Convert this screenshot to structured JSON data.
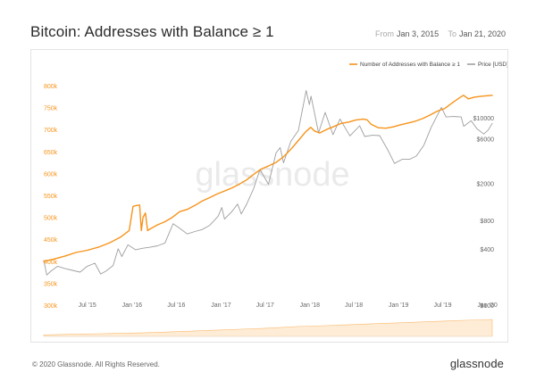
{
  "header": {
    "title": "Bitcoin: Addresses with Balance ≥ 1",
    "from_label": "From",
    "from_value": "Jan 3, 2015",
    "to_label": "To",
    "to_value": "Jan 21, 2020"
  },
  "footer": {
    "copyright": "© 2020 Glassnode. All Rights Reserved.",
    "logo": "glassnode"
  },
  "watermark": {
    "text": "glassnode"
  },
  "colors": {
    "addresses": "#f7931a",
    "price": "#9e9e9e",
    "volume": "#f7931a"
  },
  "chart_data": {
    "type": "line",
    "title": "Bitcoin: Addresses with Balance ≥ 1",
    "x_range": [
      "2015-01-03",
      "2020-01-21"
    ],
    "x_ticks": [
      {
        "label": "Jul '15",
        "date": "2015-07-01"
      },
      {
        "label": "Jan '16",
        "date": "2016-01-01"
      },
      {
        "label": "Jul '16",
        "date": "2016-07-01"
      },
      {
        "label": "Jan '17",
        "date": "2017-01-01"
      },
      {
        "label": "Jul '17",
        "date": "2017-07-01"
      },
      {
        "label": "Jan '18",
        "date": "2018-01-01"
      },
      {
        "label": "Jul '18",
        "date": "2018-07-01"
      },
      {
        "label": "Jan '19",
        "date": "2019-01-01"
      },
      {
        "label": "Jul '19",
        "date": "2019-07-01"
      },
      {
        "label": "Jan '20",
        "date": "2020-01-01"
      }
    ],
    "y_left": {
      "scale": "linear",
      "ylim": [
        300000,
        800000
      ],
      "ticks": [
        300000,
        350000,
        400000,
        450000,
        500000,
        550000,
        600000,
        650000,
        700000,
        750000,
        800000
      ],
      "tick_labels": [
        "300k",
        "350k",
        "400k",
        "450k",
        "500k",
        "550k",
        "600k",
        "650k",
        "700k",
        "750k",
        "800k"
      ]
    },
    "y_right": {
      "scale": "log",
      "ylim": [
        100,
        22000
      ],
      "ticks": [
        100,
        400,
        800,
        2000,
        6000,
        10000
      ],
      "tick_labels": [
        "$100",
        "$400",
        "$800",
        "$2000",
        "$6000",
        "$10000"
      ]
    },
    "legend": {
      "position": "top-right"
    },
    "series": [
      {
        "name": "Number of Addresses with Balance ≥ 1",
        "axis": "left",
        "color": "#f7931a",
        "points": [
          [
            "2015-01-03",
            400000
          ],
          [
            "2015-02-15",
            405000
          ],
          [
            "2015-04-01",
            412000
          ],
          [
            "2015-05-15",
            420000
          ],
          [
            "2015-07-01",
            425000
          ],
          [
            "2015-08-15",
            432000
          ],
          [
            "2015-10-01",
            442000
          ],
          [
            "2015-11-15",
            455000
          ],
          [
            "2015-12-20",
            470000
          ],
          [
            "2016-01-05",
            525000
          ],
          [
            "2016-01-20",
            527000
          ],
          [
            "2016-02-01",
            528000
          ],
          [
            "2016-02-08",
            470000
          ],
          [
            "2016-02-15",
            500000
          ],
          [
            "2016-02-25",
            510000
          ],
          [
            "2016-03-05",
            470000
          ],
          [
            "2016-03-20",
            475000
          ],
          [
            "2016-04-15",
            483000
          ],
          [
            "2016-05-15",
            490000
          ],
          [
            "2016-06-15",
            500000
          ],
          [
            "2016-07-15",
            513000
          ],
          [
            "2016-08-15",
            518000
          ],
          [
            "2016-09-15",
            527000
          ],
          [
            "2016-10-15",
            537000
          ],
          [
            "2016-11-15",
            545000
          ],
          [
            "2016-12-15",
            553000
          ],
          [
            "2017-01-15",
            560000
          ],
          [
            "2017-02-15",
            567000
          ],
          [
            "2017-03-15",
            575000
          ],
          [
            "2017-04-15",
            585000
          ],
          [
            "2017-05-15",
            598000
          ],
          [
            "2017-06-15",
            610000
          ],
          [
            "2017-07-15",
            617000
          ],
          [
            "2017-08-15",
            625000
          ],
          [
            "2017-09-15",
            638000
          ],
          [
            "2017-10-15",
            655000
          ],
          [
            "2017-11-15",
            675000
          ],
          [
            "2017-12-15",
            695000
          ],
          [
            "2018-01-05",
            705000
          ],
          [
            "2018-01-20",
            697000
          ],
          [
            "2018-02-10",
            692000
          ],
          [
            "2018-03-10",
            700000
          ],
          [
            "2018-04-10",
            707000
          ],
          [
            "2018-05-10",
            714000
          ],
          [
            "2018-06-10",
            717000
          ],
          [
            "2018-07-10",
            722000
          ],
          [
            "2018-08-10",
            724000
          ],
          [
            "2018-08-25",
            722000
          ],
          [
            "2018-09-10",
            712000
          ],
          [
            "2018-10-10",
            704000
          ],
          [
            "2018-11-10",
            703000
          ],
          [
            "2018-12-10",
            706000
          ],
          [
            "2019-01-10",
            711000
          ],
          [
            "2019-02-10",
            715000
          ],
          [
            "2019-03-10",
            719000
          ],
          [
            "2019-04-10",
            725000
          ],
          [
            "2019-05-10",
            733000
          ],
          [
            "2019-06-10",
            742000
          ],
          [
            "2019-07-10",
            748000
          ],
          [
            "2019-08-10",
            761000
          ],
          [
            "2019-09-10",
            773000
          ],
          [
            "2019-09-25",
            778000
          ],
          [
            "2019-10-15",
            770000
          ],
          [
            "2019-11-10",
            774000
          ],
          [
            "2019-12-10",
            776000
          ],
          [
            "2020-01-21",
            778000
          ]
        ]
      },
      {
        "name": "Price [USD]",
        "axis": "right",
        "color": "#9e9e9e",
        "points": [
          [
            "2015-01-03",
            300
          ],
          [
            "2015-01-15",
            210
          ],
          [
            "2015-02-01",
            230
          ],
          [
            "2015-03-01",
            260
          ],
          [
            "2015-04-01",
            245
          ],
          [
            "2015-05-01",
            235
          ],
          [
            "2015-06-01",
            225
          ],
          [
            "2015-07-01",
            260
          ],
          [
            "2015-08-01",
            280
          ],
          [
            "2015-08-25",
            215
          ],
          [
            "2015-09-15",
            230
          ],
          [
            "2015-10-15",
            265
          ],
          [
            "2015-11-05",
            400
          ],
          [
            "2015-11-20",
            330
          ],
          [
            "2015-12-15",
            440
          ],
          [
            "2016-01-15",
            390
          ],
          [
            "2016-02-15",
            405
          ],
          [
            "2016-03-15",
            415
          ],
          [
            "2016-04-15",
            430
          ],
          [
            "2016-05-15",
            460
          ],
          [
            "2016-06-18",
            740
          ],
          [
            "2016-07-15",
            660
          ],
          [
            "2016-08-15",
            575
          ],
          [
            "2016-09-15",
            610
          ],
          [
            "2016-10-15",
            640
          ],
          [
            "2016-11-15",
            710
          ],
          [
            "2016-12-20",
            890
          ],
          [
            "2017-01-04",
            1100
          ],
          [
            "2017-01-15",
            830
          ],
          [
            "2017-02-15",
            1000
          ],
          [
            "2017-03-10",
            1200
          ],
          [
            "2017-03-25",
            940
          ],
          [
            "2017-04-15",
            1180
          ],
          [
            "2017-05-15",
            1750
          ],
          [
            "2017-06-10",
            2800
          ],
          [
            "2017-07-15",
            1950
          ],
          [
            "2017-08-15",
            4200
          ],
          [
            "2017-09-01",
            4800
          ],
          [
            "2017-09-15",
            3300
          ],
          [
            "2017-10-15",
            5600
          ],
          [
            "2017-11-15",
            7300
          ],
          [
            "2017-12-17",
            19500
          ],
          [
            "2017-12-30",
            13800
          ],
          [
            "2018-01-06",
            17000
          ],
          [
            "2018-02-06",
            6900
          ],
          [
            "2018-03-05",
            11400
          ],
          [
            "2018-04-06",
            6600
          ],
          [
            "2018-05-05",
            9700
          ],
          [
            "2018-06-15",
            6400
          ],
          [
            "2018-07-25",
            8200
          ],
          [
            "2018-08-15",
            6300
          ],
          [
            "2018-09-15",
            6500
          ],
          [
            "2018-10-15",
            6450
          ],
          [
            "2018-11-20",
            4400
          ],
          [
            "2018-12-15",
            3250
          ],
          [
            "2019-01-15",
            3600
          ],
          [
            "2019-02-15",
            3600
          ],
          [
            "2019-03-15",
            3900
          ],
          [
            "2019-04-15",
            5100
          ],
          [
            "2019-05-15",
            7900
          ],
          [
            "2019-06-26",
            12900
          ],
          [
            "2019-07-15",
            10200
          ],
          [
            "2019-08-15",
            10300
          ],
          [
            "2019-09-15",
            10200
          ],
          [
            "2019-09-26",
            8100
          ],
          [
            "2019-10-26",
            9300
          ],
          [
            "2019-11-20",
            7600
          ],
          [
            "2019-12-17",
            6700
          ],
          [
            "2020-01-05",
            7400
          ],
          [
            "2020-01-21",
            8700
          ]
        ]
      }
    ]
  }
}
